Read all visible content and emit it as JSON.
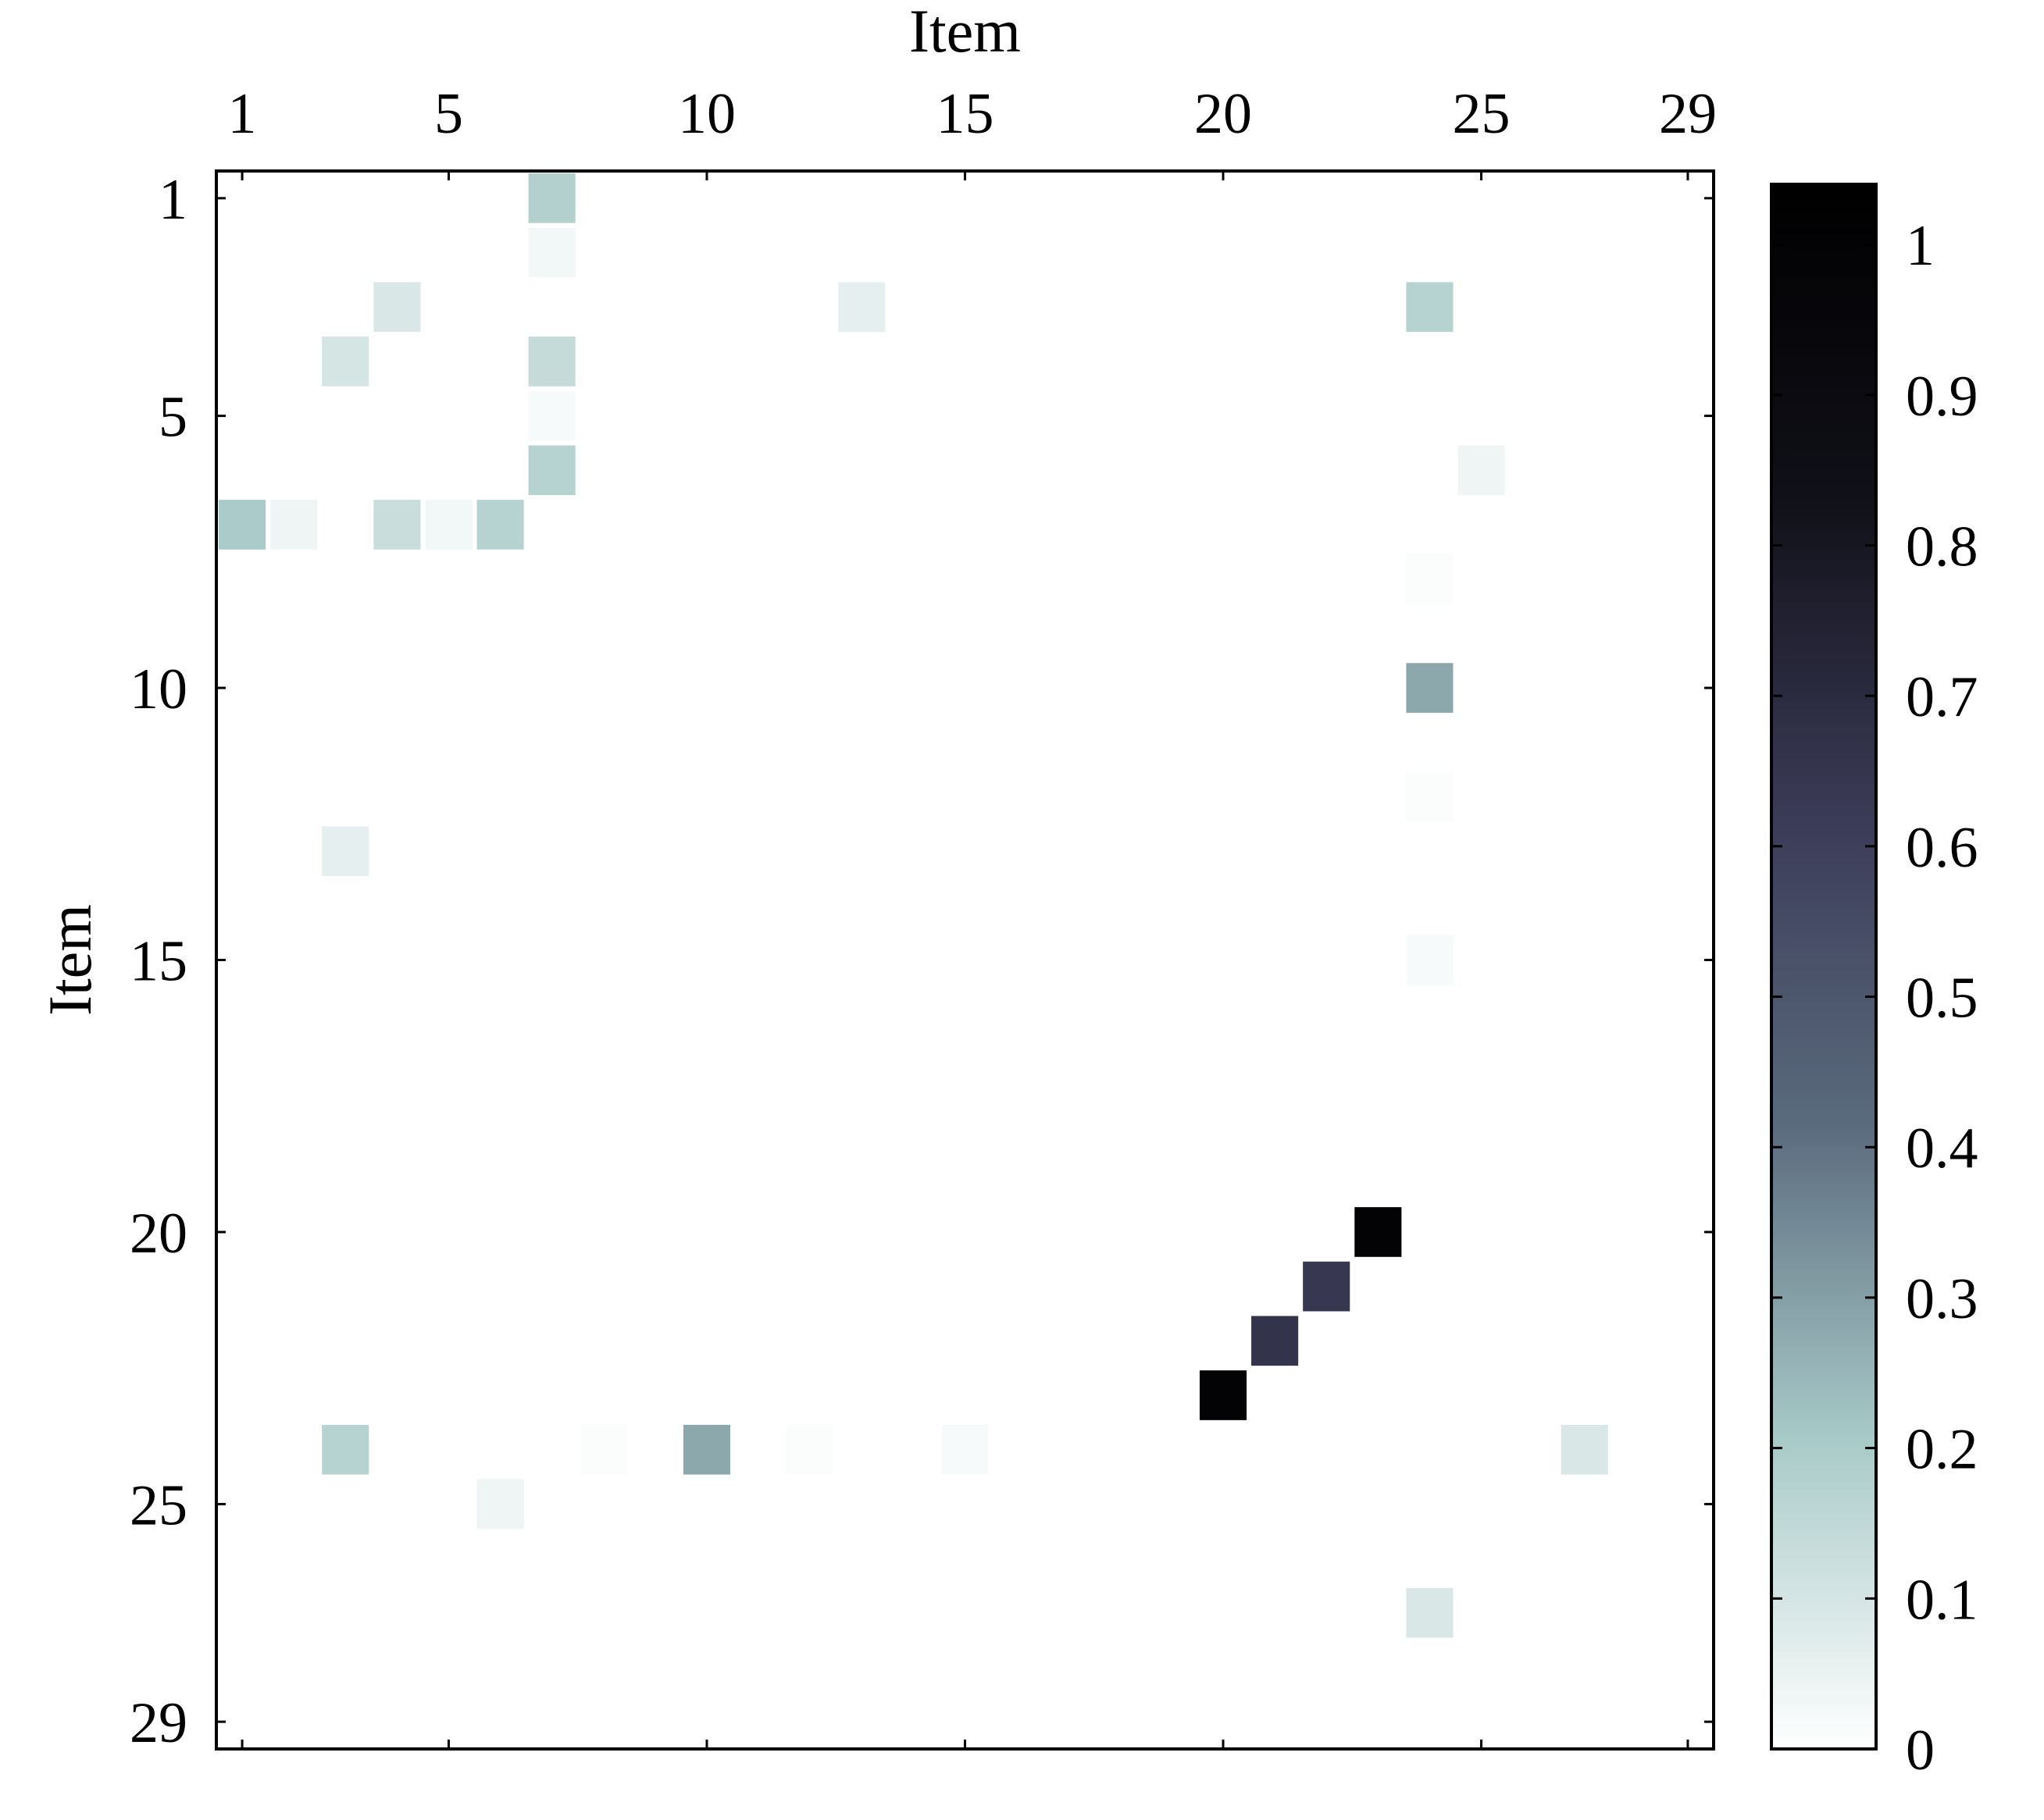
{
  "chart_data": {
    "type": "heatmap",
    "xlabel": "Item",
    "ylabel": "Item",
    "x_ticks": [
      1,
      5,
      10,
      15,
      20,
      25,
      29
    ],
    "y_ticks": [
      1,
      5,
      10,
      15,
      20,
      25,
      29
    ],
    "n_rows": 29,
    "n_cols": 29,
    "zlim": [
      0,
      1.04
    ],
    "colorbar_ticks": [
      0,
      0.1,
      0.2,
      0.3,
      0.4,
      0.5,
      0.6,
      0.7,
      0.8,
      0.9,
      1
    ],
    "colorbar_ticks_labels": [
      "0",
      "0.1",
      "0.2",
      "0.3",
      "0.4",
      "0.5",
      "0.6",
      "0.7",
      "0.8",
      "0.9",
      "1"
    ],
    "colormap": [
      "#ffffff",
      "#a7c9c7",
      "#5a6a7d",
      "#3a3a56",
      "#101018",
      "#000000"
    ],
    "default_value": 0,
    "cells": [
      {
        "row": 1,
        "col": 7,
        "value": 0.18
      },
      {
        "row": 2,
        "col": 7,
        "value": 0.03
      },
      {
        "row": 3,
        "col": 4,
        "value": 0.09
      },
      {
        "row": 3,
        "col": 13,
        "value": 0.06
      },
      {
        "row": 3,
        "col": 24,
        "value": 0.17
      },
      {
        "row": 4,
        "col": 3,
        "value": 0.1
      },
      {
        "row": 4,
        "col": 7,
        "value": 0.14
      },
      {
        "row": 5,
        "col": 7,
        "value": 0.02
      },
      {
        "row": 6,
        "col": 7,
        "value": 0.17
      },
      {
        "row": 6,
        "col": 25,
        "value": 0.04
      },
      {
        "row": 7,
        "col": 1,
        "value": 0.2
      },
      {
        "row": 7,
        "col": 2,
        "value": 0.04
      },
      {
        "row": 7,
        "col": 4,
        "value": 0.13
      },
      {
        "row": 7,
        "col": 5,
        "value": 0.03
      },
      {
        "row": 7,
        "col": 6,
        "value": 0.17
      },
      {
        "row": 8,
        "col": 24,
        "value": 0.01
      },
      {
        "row": 10,
        "col": 24,
        "value": 0.28
      },
      {
        "row": 12,
        "col": 24,
        "value": 0.01
      },
      {
        "row": 13,
        "col": 3,
        "value": 0.06
      },
      {
        "row": 15,
        "col": 24,
        "value": 0.02
      },
      {
        "row": 20,
        "col": 23,
        "value": 1.0
      },
      {
        "row": 21,
        "col": 22,
        "value": 0.64
      },
      {
        "row": 22,
        "col": 21,
        "value": 0.66
      },
      {
        "row": 23,
        "col": 20,
        "value": 1.0
      },
      {
        "row": 24,
        "col": 3,
        "value": 0.17
      },
      {
        "row": 24,
        "col": 8,
        "value": 0.01
      },
      {
        "row": 24,
        "col": 10,
        "value": 0.28
      },
      {
        "row": 24,
        "col": 12,
        "value": 0.01
      },
      {
        "row": 24,
        "col": 15,
        "value": 0.02
      },
      {
        "row": 24,
        "col": 27,
        "value": 0.09
      },
      {
        "row": 25,
        "col": 6,
        "value": 0.04
      },
      {
        "row": 27,
        "col": 24,
        "value": 0.09
      }
    ]
  }
}
